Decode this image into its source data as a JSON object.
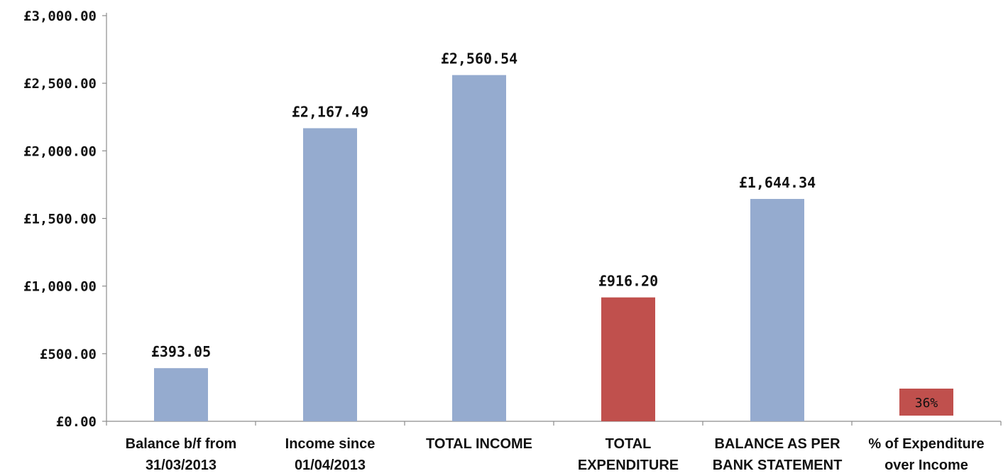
{
  "chart_data": {
    "type": "bar",
    "title": "",
    "xlabel": "",
    "ylabel": "",
    "ylim": [
      0,
      3000
    ],
    "grid": false,
    "legend": "none",
    "y_ticks": [
      {
        "value": 0,
        "label": "£0.00"
      },
      {
        "value": 500,
        "label": "£500.00"
      },
      {
        "value": 1000,
        "label": "£1,000.00"
      },
      {
        "value": 1500,
        "label": "£1,500.00"
      },
      {
        "value": 2000,
        "label": "£2,000.00"
      },
      {
        "value": 2500,
        "label": "£2,500.00"
      },
      {
        "value": 3000,
        "label": "£3,000.00"
      }
    ],
    "categories": [
      [
        "Balance b/f from",
        "31/03/2013"
      ],
      [
        "Income since",
        "01/04/2013"
      ],
      [
        "TOTAL INCOME"
      ],
      [
        "TOTAL",
        "EXPENDITURE"
      ],
      [
        "BALANCE AS PER",
        "BANK STATEMENT"
      ],
      [
        "% of Expenditure",
        "over Income"
      ]
    ],
    "values": [
      393.05,
      2167.49,
      2560.54,
      916.2,
      1644.34,
      36
    ],
    "data_labels": [
      "£393.05",
      "£2,167.49",
      "£2,560.54",
      "£916.20",
      "£1,644.34",
      "36%"
    ],
    "label_inside": [
      false,
      false,
      false,
      false,
      false,
      true
    ],
    "colors": [
      "#95abcf",
      "#95abcf",
      "#95abcf",
      "#c0504d",
      "#95abcf",
      "#c0504d"
    ],
    "percent_bar_max": 100
  }
}
